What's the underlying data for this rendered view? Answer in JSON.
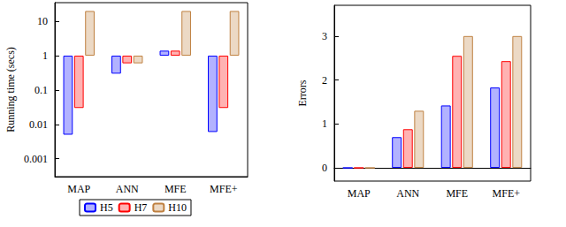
{
  "chart_data": [
    {
      "type": "bar",
      "y_label": "Running time (secs)",
      "log": "y",
      "legend": "bottom",
      "categories": [
        "MAP",
        "ANN",
        "MFE",
        "MFE+"
      ],
      "series": [
        {
          "name": "H5",
          "color": "#0000ff",
          "values": [
            0.005,
            0.3,
            1.4,
            0.006
          ]
        },
        {
          "name": "H7",
          "color": "#ff0000",
          "values": [
            0.03,
            0.6,
            1.4,
            0.03
          ]
        },
        {
          "name": "H10",
          "color": "#bf8040",
          "values": [
            20,
            0.6,
            20,
            20
          ]
        }
      ],
      "ylim": [
        0.0003,
        35
      ],
      "yticks": [
        0.001,
        0.01,
        0.1,
        1,
        10
      ]
    },
    {
      "type": "bar",
      "y_label": "Errors",
      "categories": [
        "MAP",
        "ANN",
        "MFE",
        "MFE+"
      ],
      "series": [
        {
          "name": "H5",
          "color": "#0000ff",
          "values": [
            0,
            0.7,
            1.42,
            1.83
          ]
        },
        {
          "name": "H7",
          "color": "#ff0000",
          "values": [
            0,
            0.88,
            2.55,
            2.43
          ]
        },
        {
          "name": "H10",
          "color": "#bf8040",
          "values": [
            0,
            1.3,
            3.0,
            3.0
          ]
        }
      ],
      "ylim": [
        -0.3,
        3.7
      ],
      "yticks": [
        0,
        1,
        2,
        3
      ]
    }
  ]
}
